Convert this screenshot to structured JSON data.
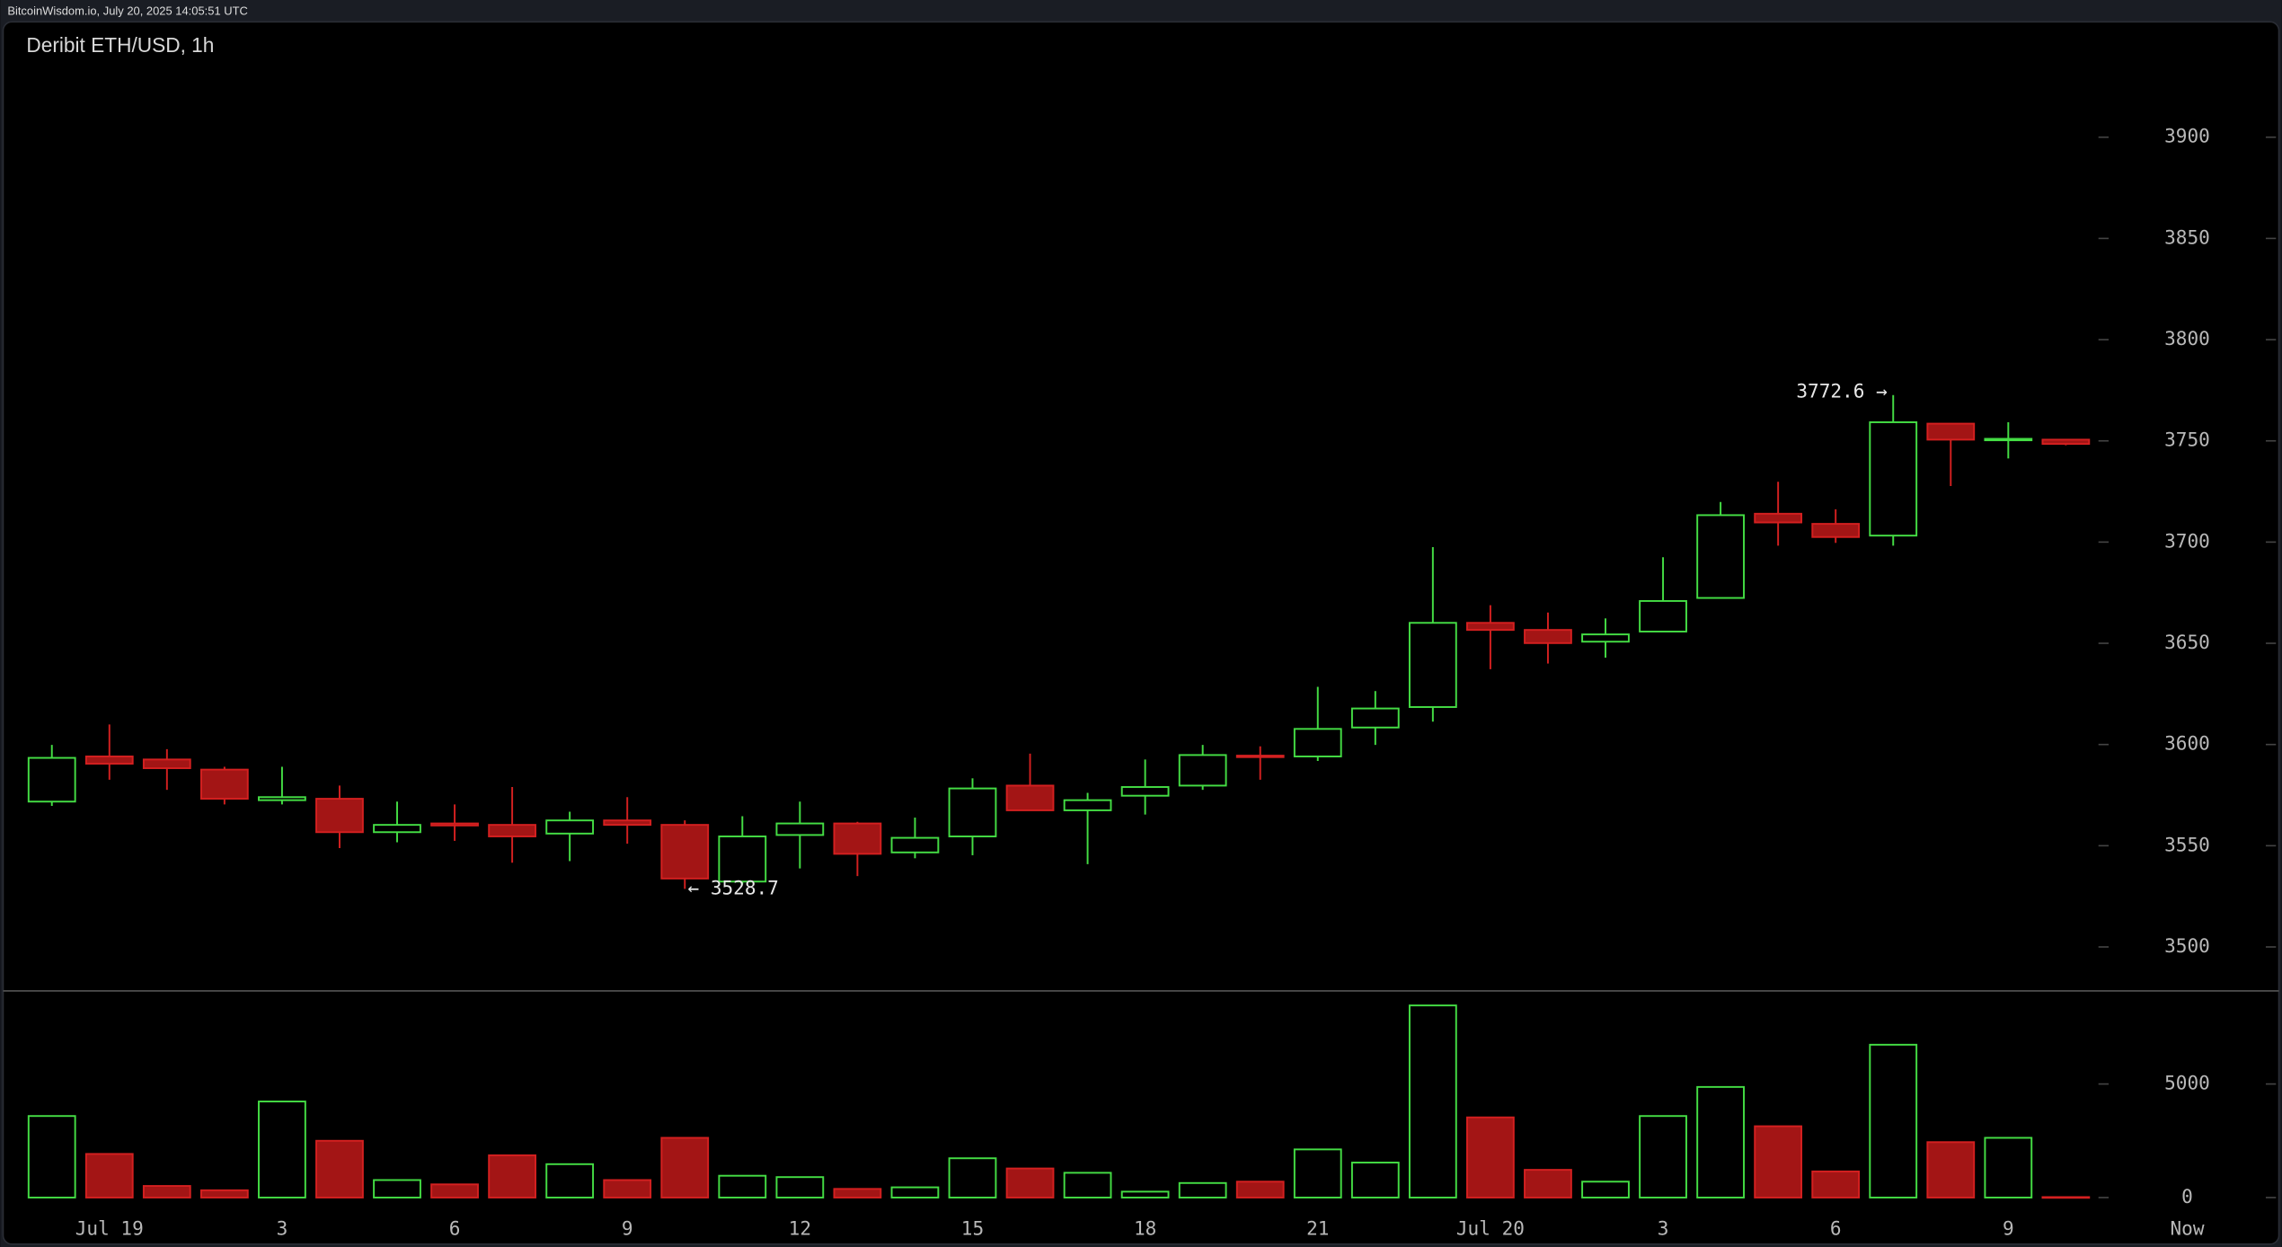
{
  "header": "BitcoinWisdom.io, July 20, 2025 14:05:51 UTC",
  "chart_data": {
    "type": "candlestick",
    "title": "Deribit ETH/USD, 1h",
    "categories": [
      null,
      "Jul 19",
      null,
      null,
      "3",
      null,
      null,
      "6",
      null,
      null,
      "9",
      null,
      null,
      "12",
      null,
      null,
      "15",
      null,
      null,
      "18",
      null,
      null,
      "21",
      null,
      null,
      "Jul 20",
      null,
      null,
      "3",
      null,
      null,
      "6",
      null,
      null,
      "9",
      null
    ],
    "now_label": "Now",
    "open": [
      3571.8,
      3594.1,
      3592.6,
      3587.6,
      3572.5,
      3573.2,
      3556.7,
      3561.0,
      3560.3,
      3556.0,
      3562.5,
      3560.3,
      3532.3,
      3555.3,
      3561.0,
      3546.7,
      3554.6,
      3579.7,
      3567.5,
      3574.7,
      3579.7,
      3594.5,
      3594.1,
      3608.4,
      3618.5,
      3660.1,
      3656.6,
      3650.8,
      3655.8,
      3672.4,
      3714.0,
      3709.0,
      3703.2,
      3758.5,
      3750.5,
      3750.6
    ],
    "high": [
      3599.8,
      3609.9,
      3597.7,
      3589.0,
      3589.0,
      3579.7,
      3571.8,
      3570.4,
      3579.0,
      3566.8,
      3574.0,
      3562.5,
      3564.6,
      3571.8,
      3561.8,
      3563.9,
      3583.3,
      3595.5,
      3576.1,
      3592.6,
      3599.8,
      3599.1,
      3628.5,
      3626.4,
      3697.5,
      3668.8,
      3665.2,
      3662.3,
      3692.5,
      3719.8,
      3729.8,
      3716.2,
      3772.6,
      3758.5,
      3759.2,
      3750.8
    ],
    "low": [
      3569.7,
      3582.6,
      3577.6,
      3570.4,
      3570.4,
      3548.8,
      3551.7,
      3552.4,
      3541.6,
      3542.4,
      3551.0,
      3528.7,
      3530.9,
      3538.8,
      3535.0,
      3543.8,
      3545.3,
      3567.5,
      3540.9,
      3565.4,
      3577.6,
      3582.6,
      3591.9,
      3599.8,
      3611.3,
      3637.2,
      3640.0,
      3642.9,
      3655.8,
      3672.4,
      3698.2,
      3699.6,
      3698.2,
      3727.7,
      3741.3,
      3747.8
    ],
    "close": [
      3593.4,
      3590.5,
      3588.3,
      3573.2,
      3574.0,
      3556.7,
      3560.3,
      3560.0,
      3554.6,
      3562.5,
      3560.3,
      3533.8,
      3554.6,
      3561.0,
      3546.0,
      3553.9,
      3578.3,
      3567.5,
      3572.5,
      3579.0,
      3594.8,
      3593.8,
      3607.7,
      3617.8,
      3660.1,
      3656.6,
      3650.1,
      3654.4,
      3670.9,
      3713.3,
      3709.7,
      3702.5,
      3759.2,
      3750.6,
      3751.0,
      3748.5
    ],
    "volume": [
      3590,
      1920,
      510,
      320,
      4230,
      2500,
      770,
      580,
      1860,
      1470,
      770,
      2630,
      960,
      900,
      380,
      450,
      1730,
      1280,
      1090,
      260,
      640,
      700,
      2120,
      1540,
      8460,
      3530,
      1220,
      700,
      3590,
      4870,
      3140,
      1150,
      6730,
      2440,
      2630,
      20
    ],
    "up_color": "#44dd44",
    "down_color": "#a31515",
    "down_edge_color": "#d42020",
    "ylim": [
      3479,
      3957
    ],
    "yticks": [
      3500,
      3550,
      3600,
      3650,
      3700,
      3750,
      3800,
      3850,
      3900
    ],
    "volume_ylim": [
      -640,
      9100
    ],
    "volume_yticks": [
      0,
      5000
    ],
    "annotations": [
      "3772.6 →",
      "← 3528.7"
    ]
  }
}
